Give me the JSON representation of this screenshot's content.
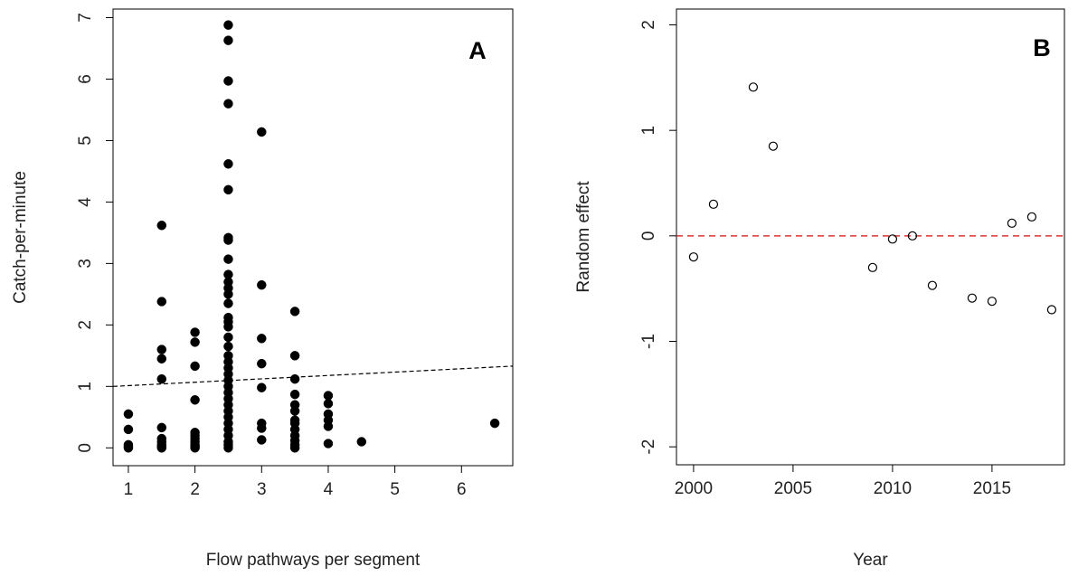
{
  "chart_data": [
    {
      "type": "scatter",
      "panel_label": "A",
      "xlabel": "Flow pathways per segment",
      "ylabel": "Catch-per-minute",
      "color": "#000000",
      "x": [
        1,
        1,
        1,
        1,
        1,
        1.5,
        1.5,
        1.5,
        1.5,
        1.5,
        1.5,
        1.5,
        1.5,
        1.5,
        1.5,
        1.5,
        2,
        2,
        2,
        2,
        2,
        2,
        2,
        2,
        2,
        2,
        2,
        2.5,
        2.5,
        2.5,
        2.5,
        2.5,
        2.5,
        2.5,
        2.5,
        2.5,
        2.5,
        2.5,
        2.5,
        2.5,
        2.5,
        2.5,
        2.5,
        2.5,
        2.5,
        2.5,
        2.5,
        2.5,
        2.5,
        2.5,
        2.5,
        2.5,
        2.5,
        2.5,
        2.5,
        2.5,
        2.5,
        2.5,
        2.5,
        2.5,
        2.5,
        2.5,
        2.5,
        3,
        3,
        3,
        3,
        3,
        3,
        3,
        3,
        3.5,
        3.5,
        3.5,
        3.5,
        3.5,
        3.5,
        3.5,
        3.5,
        3.5,
        3.5,
        3.5,
        3.5,
        3.5,
        4,
        4,
        4,
        4,
        4,
        4,
        4.5,
        6.5
      ],
      "values": [
        0.55,
        0.3,
        0.05,
        0.0,
        0.02,
        3.62,
        2.38,
        1.6,
        1.45,
        1.12,
        0.33,
        0.15,
        0.1,
        0.05,
        0.02,
        0.0,
        1.88,
        1.72,
        1.33,
        0.78,
        0.25,
        0.2,
        0.15,
        0.1,
        0.05,
        0.02,
        0.0,
        6.88,
        6.63,
        5.97,
        5.6,
        4.62,
        4.2,
        3.42,
        3.38,
        3.07,
        2.82,
        2.7,
        2.6,
        2.5,
        2.35,
        2.12,
        2.05,
        1.97,
        1.8,
        1.65,
        1.5,
        1.4,
        1.3,
        1.2,
        1.1,
        1.0,
        0.9,
        0.8,
        0.7,
        0.6,
        0.5,
        0.4,
        0.3,
        0.2,
        0.1,
        0.05,
        0.0,
        5.14,
        2.65,
        1.78,
        1.37,
        0.98,
        0.4,
        0.32,
        0.13,
        2.22,
        1.5,
        1.12,
        0.87,
        0.7,
        0.6,
        0.45,
        0.4,
        0.3,
        0.2,
        0.12,
        0.05,
        0.0,
        0.85,
        0.72,
        0.55,
        0.45,
        0.35,
        0.07,
        0.1,
        0.4
      ],
      "trend_line": {
        "x": [
          0.77,
          6.77
        ],
        "values": [
          1.0,
          1.33
        ],
        "color": "#000000"
      },
      "xlim": [
        0.77,
        6.77
      ],
      "ylim": [
        -0.29,
        7.14
      ],
      "xticks": [
        1,
        2,
        3,
        4,
        5,
        6
      ],
      "yticks": [
        0,
        1,
        2,
        3,
        4,
        5,
        6,
        7
      ]
    },
    {
      "type": "scatter",
      "panel_label": "B",
      "xlabel": "Year",
      "ylabel": "Random effect",
      "color": "#000000",
      "hollow": true,
      "x": [
        2000,
        2001,
        2003,
        2004,
        2009,
        2010,
        2011,
        2012,
        2014,
        2015,
        2016,
        2017,
        2018
      ],
      "values": [
        -0.2,
        0.3,
        1.41,
        0.85,
        -0.3,
        -0.03,
        0.0,
        -0.47,
        -0.59,
        -0.62,
        0.12,
        0.18,
        -0.7
      ],
      "reference_line": {
        "value": 0,
        "color": "#e03030"
      },
      "xlim": [
        1999.14,
        2018.64
      ],
      "ylim": [
        -2.17,
        2.15
      ],
      "xticks": [
        2000,
        2005,
        2010,
        2015
      ],
      "yticks": [
        -2,
        -1,
        0,
        1,
        2
      ]
    }
  ]
}
